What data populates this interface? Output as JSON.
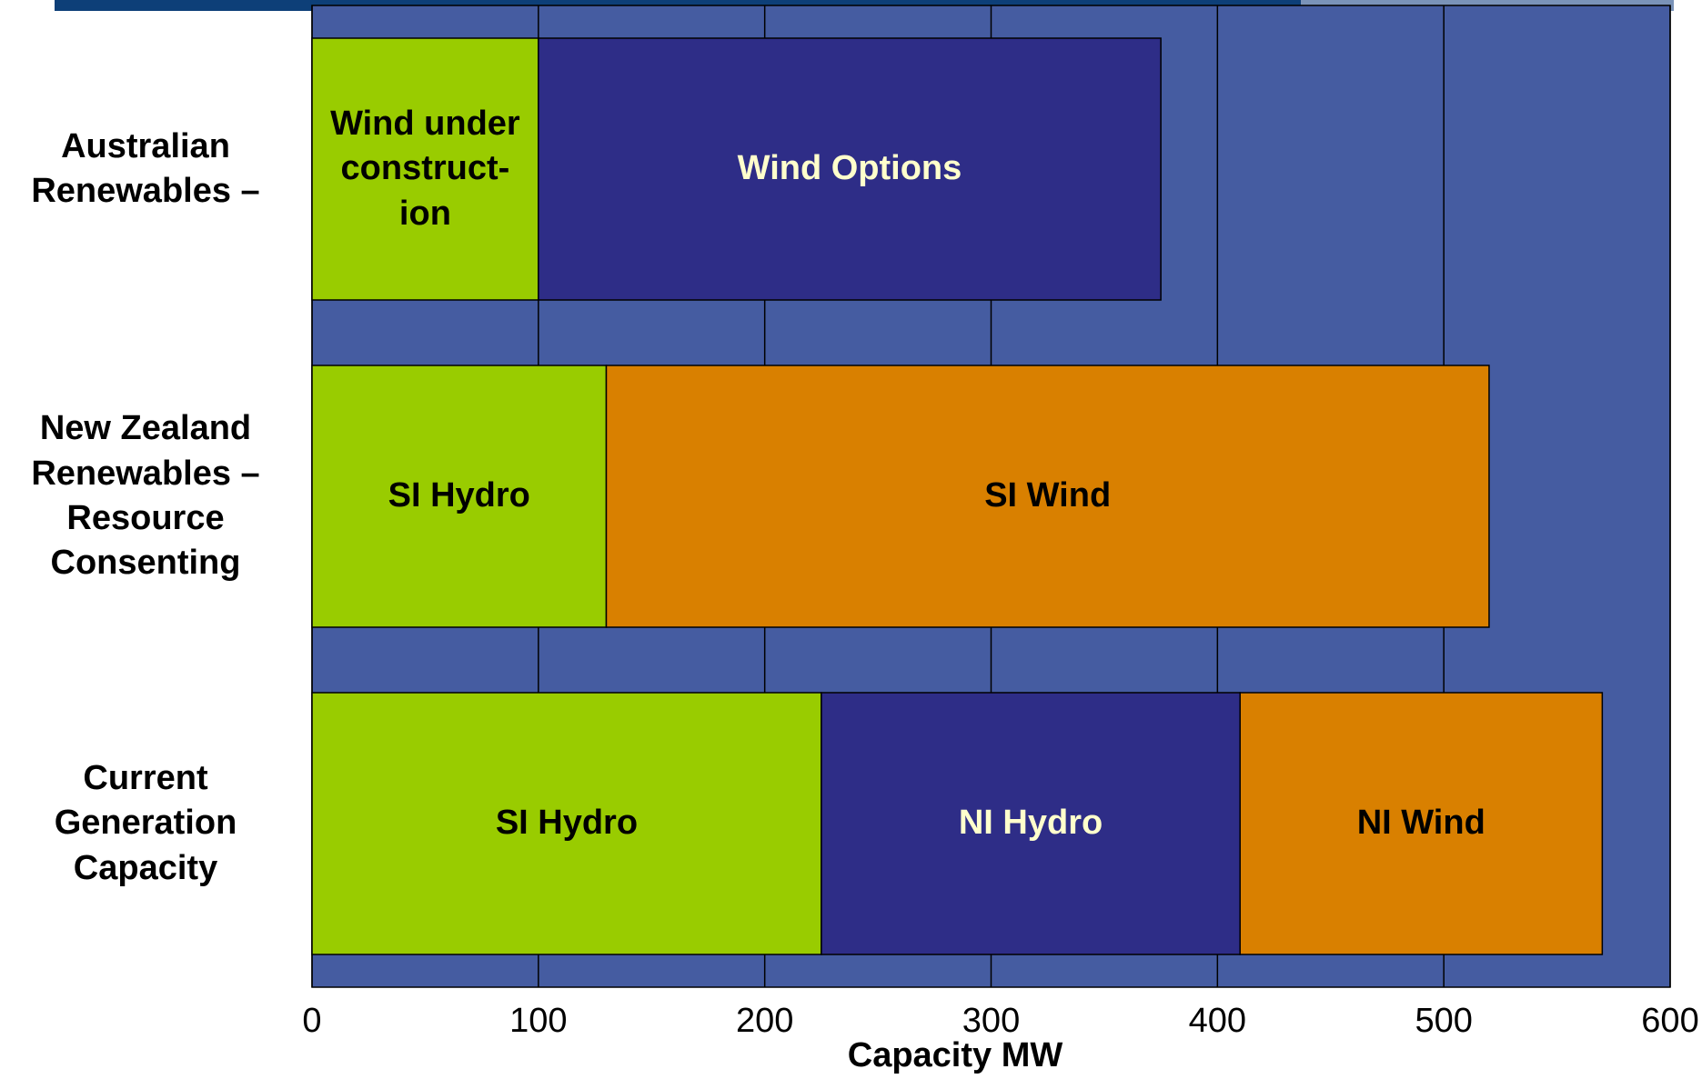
{
  "chart_data": {
    "type": "stacked-bar-horizontal",
    "x_label": "Capacity MW",
    "categories": [
      "Australian Renewables –",
      "New Zealand Renewables – Resource Consenting",
      "Current Generation Capacity"
    ],
    "stacks": [
      {
        "segments": [
          {
            "label": "Wind under construct-ion",
            "value": 100,
            "color": "#99cc00",
            "text_color": "#000000"
          },
          {
            "label": "Wind Options",
            "value": 275,
            "color": "#2e2d87",
            "text_color": "#ffffcc"
          }
        ]
      },
      {
        "segments": [
          {
            "label": "SI Hydro",
            "value": 130,
            "color": "#99cc00",
            "text_color": "#000000"
          },
          {
            "label": "SI Wind",
            "value": 390,
            "color": "#d98000",
            "text_color": "#000000"
          }
        ]
      },
      {
        "segments": [
          {
            "label": "SI Hydro",
            "value": 225,
            "color": "#99cc00",
            "text_color": "#000000"
          },
          {
            "label": "NI Hydro",
            "value": 185,
            "color": "#2e2d87",
            "text_color": "#ffffcc"
          },
          {
            "label": "NI Wind",
            "value": 160,
            "color": "#d98000",
            "text_color": "#000000"
          }
        ]
      }
    ],
    "xlim": [
      0,
      600
    ],
    "xticks": [
      0,
      100,
      200,
      300,
      400,
      500,
      600
    ],
    "grid": true,
    "plot_color": "#455ca1"
  }
}
